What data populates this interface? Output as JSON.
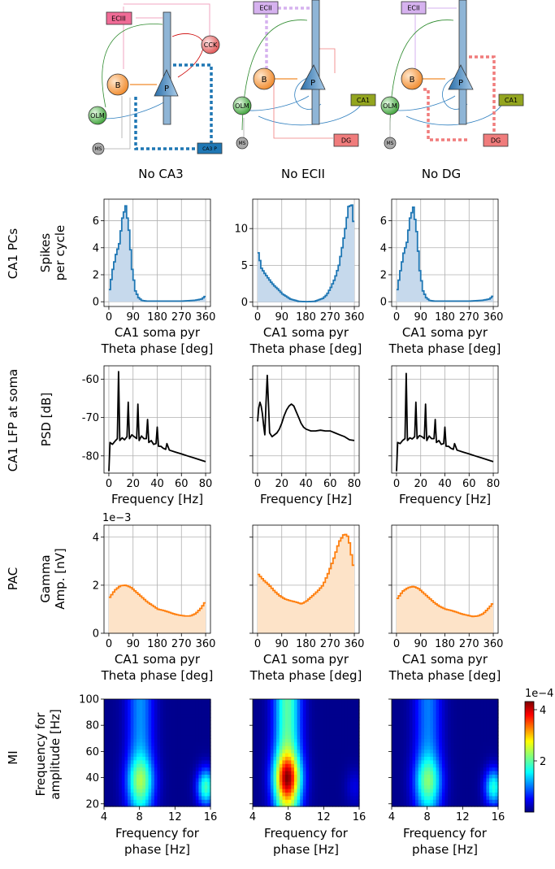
{
  "diagrams": [
    {
      "title": "No CA3",
      "nodes": {
        "ec": "ECIII",
        "b": "B",
        "p": "P",
        "olm": "OLM",
        "ms": "MS",
        "cck": "CCK",
        "ca3p": "CA3 P"
      }
    },
    {
      "title": "No ECII",
      "nodes": {
        "ec": "ECII",
        "b": "B",
        "p": "P",
        "olm": "OLM",
        "ms": "MS",
        "ca1": "CA1",
        "dg": "DG"
      }
    },
    {
      "title": "No DG",
      "nodes": {
        "ec": "ECII",
        "b": "B",
        "p": "P",
        "olm": "OLM",
        "ms": "MS",
        "ca1": "CA1",
        "dg": "DG"
      }
    }
  ],
  "row_labels": [
    "CA1 PCs",
    "CA1 LFP at soma",
    "PAC",
    "MI"
  ],
  "colors": {
    "spikes": "#1f77b4",
    "spikes_fill": "#c6d9ec",
    "psd": "#000000",
    "pac": "#ff7f0e",
    "pac_fill": "#fde3c8",
    "ec3": "#f06b96",
    "ec2": "#d6b2ef",
    "dg": "#f07c7c",
    "ca1": "#93a51f"
  },
  "chart_data": [
    {
      "type": "area",
      "row": "CA1 PCs",
      "ylabel": [
        "Spikes",
        "per cycle"
      ],
      "xlabel": [
        "CA1 soma pyr",
        "Theta phase [deg]"
      ],
      "xticks": [
        "0",
        "90",
        "180",
        "270",
        "360"
      ],
      "panels": [
        {
          "name": "No CA3",
          "ylim": [
            -0.35,
            7.6
          ],
          "yticks": [
            "0",
            "2",
            "4",
            "6"
          ],
          "x": [
            0,
            12,
            24,
            36,
            48,
            60,
            72,
            84,
            96,
            108,
            120,
            135,
            180,
            225,
            270,
            315,
            330,
            342,
            352,
            358
          ],
          "values": [
            0.9,
            2.4,
            3.5,
            4.3,
            6.2,
            7.1,
            5.3,
            2.4,
            0.8,
            0.3,
            0.1,
            0.05,
            0.05,
            0.05,
            0.05,
            0.1,
            0.15,
            0.2,
            0.35,
            0.45
          ]
        },
        {
          "name": "No ECII",
          "ylim": [
            -0.6,
            14.0
          ],
          "yticks": [
            "0",
            "5",
            "10"
          ],
          "x": [
            0,
            12,
            24,
            36,
            48,
            60,
            72,
            90,
            120,
            150,
            180,
            210,
            240,
            255,
            270,
            285,
            300,
            312,
            324,
            336,
            348,
            358
          ],
          "values": [
            6.7,
            4.6,
            3.9,
            3.3,
            2.7,
            2.2,
            1.8,
            1.1,
            0.4,
            0.1,
            0.05,
            0.1,
            0.5,
            1.0,
            2.0,
            3.2,
            5.0,
            7.4,
            10.0,
            13.0,
            13.2,
            9.5
          ]
        },
        {
          "name": "No DG",
          "ylim": [
            -0.35,
            7.6
          ],
          "yticks": [
            "0",
            "2",
            "4",
            "6"
          ],
          "x": [
            0,
            12,
            24,
            36,
            48,
            60,
            72,
            84,
            96,
            108,
            120,
            135,
            180,
            225,
            270,
            315,
            330,
            342,
            352,
            358
          ],
          "values": [
            0.9,
            2.3,
            3.6,
            4.4,
            6.2,
            7.0,
            5.2,
            2.3,
            0.8,
            0.3,
            0.1,
            0.05,
            0.05,
            0.05,
            0.05,
            0.1,
            0.15,
            0.2,
            0.35,
            0.5
          ]
        }
      ]
    },
    {
      "type": "line",
      "row": "CA1 LFP at soma",
      "ylabel": [
        "PSD [dB]"
      ],
      "xlabel": [
        "Frequency [Hz]"
      ],
      "xticks": [
        "0",
        "20",
        "40",
        "60",
        "80"
      ],
      "ylim": [
        -84.5,
        -56.5
      ],
      "yticks": [
        "-80",
        "-70",
        "-60"
      ],
      "panels": [
        {
          "name": "No CA3",
          "x": [
            0,
            1,
            3,
            5,
            7,
            8,
            9,
            11,
            13,
            15,
            16,
            17,
            19,
            21,
            23,
            24,
            25,
            27,
            29,
            31,
            32,
            33,
            35,
            37,
            39,
            40,
            41,
            43,
            45,
            47,
            48,
            50,
            55,
            60,
            65,
            70,
            75,
            80
          ],
          "values": [
            -84.0,
            -76.5,
            -77.0,
            -76.2,
            -75.5,
            -58.0,
            -76.0,
            -75.3,
            -75.8,
            -75.0,
            -66.0,
            -75.5,
            -74.5,
            -75.0,
            -75.5,
            -66.5,
            -76.0,
            -74.8,
            -75.5,
            -75.5,
            -70.5,
            -76.5,
            -76.0,
            -77.0,
            -76.8,
            -72.5,
            -77.5,
            -77.5,
            -78.0,
            -78.3,
            -76.8,
            -78.5,
            -79.0,
            -79.5,
            -80.0,
            -80.5,
            -81.0,
            -81.5
          ]
        },
        {
          "name": "No ECII",
          "x": [
            0,
            1,
            2,
            3,
            4,
            5,
            6,
            7,
            8,
            9,
            10,
            12,
            14,
            16,
            18,
            20,
            22,
            24,
            26,
            28,
            30,
            32,
            34,
            36,
            38,
            40,
            44,
            48,
            52,
            56,
            60,
            64,
            68,
            72,
            76,
            80
          ],
          "values": [
            -71.0,
            -67.5,
            -66.0,
            -67.0,
            -69.0,
            -72.0,
            -74.5,
            -66.0,
            -59.0,
            -66.5,
            -74.0,
            -75.0,
            -74.5,
            -74.0,
            -73.0,
            -71.5,
            -69.5,
            -68.0,
            -67.0,
            -66.5,
            -67.0,
            -68.5,
            -70.0,
            -71.5,
            -72.5,
            -73.0,
            -73.5,
            -73.5,
            -73.3,
            -73.5,
            -73.5,
            -74.0,
            -74.5,
            -75.0,
            -75.8,
            -76.0
          ]
        },
        {
          "name": "No DG",
          "x": [
            0,
            1,
            3,
            5,
            7,
            8,
            9,
            11,
            13,
            15,
            16,
            17,
            19,
            21,
            23,
            24,
            25,
            27,
            29,
            31,
            32,
            33,
            35,
            37,
            39,
            40,
            41,
            43,
            45,
            47,
            48,
            50,
            55,
            60,
            65,
            70,
            75,
            80
          ],
          "values": [
            -84.0,
            -76.5,
            -76.8,
            -76.0,
            -75.5,
            -58.5,
            -76.0,
            -75.3,
            -75.6,
            -75.0,
            -66.0,
            -75.5,
            -74.7,
            -75.0,
            -75.5,
            -66.5,
            -76.0,
            -74.8,
            -75.5,
            -75.5,
            -70.5,
            -76.5,
            -76.0,
            -77.0,
            -76.8,
            -72.5,
            -77.5,
            -77.5,
            -78.0,
            -78.3,
            -76.8,
            -78.5,
            -79.0,
            -79.5,
            -80.0,
            -80.5,
            -81.0,
            -81.5
          ]
        }
      ]
    },
    {
      "type": "area",
      "row": "PAC",
      "ylabel": [
        "Gamma",
        "Amp. [nV]"
      ],
      "xlabel": [
        "CA1 soma pyr",
        "Theta phase [deg]"
      ],
      "xticks": [
        "0",
        "90",
        "180",
        "270",
        "360"
      ],
      "yticks": [
        "0",
        "2",
        "4"
      ],
      "scale_note": "1e−3",
      "ylim": [
        0,
        4.5
      ],
      "panels": [
        {
          "name": "No CA3",
          "x": [
            0,
            20,
            40,
            60,
            80,
            100,
            120,
            140,
            160,
            180,
            200,
            220,
            240,
            260,
            280,
            300,
            320,
            340,
            355
          ],
          "values": [
            1.5,
            1.8,
            1.98,
            2.0,
            1.9,
            1.7,
            1.5,
            1.3,
            1.15,
            1.0,
            0.95,
            0.88,
            0.8,
            0.75,
            0.72,
            0.72,
            0.82,
            1.05,
            1.3
          ]
        },
        {
          "name": "No ECII",
          "x": [
            0,
            20,
            40,
            60,
            80,
            100,
            120,
            140,
            160,
            180,
            200,
            220,
            240,
            260,
            280,
            300,
            320,
            335,
            345,
            355
          ],
          "values": [
            2.45,
            2.2,
            2.0,
            1.75,
            1.55,
            1.42,
            1.35,
            1.3,
            1.22,
            1.35,
            1.55,
            1.75,
            2.0,
            2.5,
            3.1,
            3.8,
            4.15,
            4.0,
            3.3,
            2.7
          ]
        },
        {
          "name": "No DG",
          "x": [
            0,
            20,
            40,
            60,
            80,
            100,
            120,
            140,
            160,
            180,
            200,
            220,
            240,
            260,
            280,
            300,
            320,
            340,
            355
          ],
          "values": [
            1.45,
            1.75,
            1.9,
            1.95,
            1.85,
            1.65,
            1.45,
            1.25,
            1.1,
            1.0,
            0.95,
            0.88,
            0.8,
            0.75,
            0.7,
            0.72,
            0.82,
            1.05,
            1.25
          ]
        }
      ]
    },
    {
      "type": "heatmap",
      "row": "MI",
      "ylabel": [
        "Frequency for",
        "amplitude [Hz]"
      ],
      "xlabel": [
        "Frequency for",
        "phase [Hz]"
      ],
      "xticks": [
        "4",
        "8",
        "12",
        "16"
      ],
      "xlim": [
        4,
        16
      ],
      "yticks": [
        "20",
        "40",
        "60",
        "80",
        "100"
      ],
      "ylim": [
        18,
        100
      ],
      "colorbar": {
        "ticks": [
          "2",
          "4"
        ],
        "scale_note": "1e−4",
        "range": [
          0.5,
          4.3
        ]
      },
      "panels": [
        {
          "name": "No CA3",
          "peak": 2.6,
          "peak_x": 8.1,
          "peak_y": 38,
          "secondary_peak": 1.6,
          "secondary_x": 15.5,
          "secondary_y": 33
        },
        {
          "name": "No ECII",
          "peak": 4.3,
          "peak_x": 7.9,
          "peak_y": 40,
          "secondary_peak": 0.3,
          "secondary_x": 15.5,
          "secondary_y": 33
        },
        {
          "name": "No DG",
          "peak": 2.45,
          "peak_x": 8.1,
          "peak_y": 38,
          "secondary_peak": 1.45,
          "secondary_x": 15.5,
          "secondary_y": 33
        }
      ]
    }
  ]
}
